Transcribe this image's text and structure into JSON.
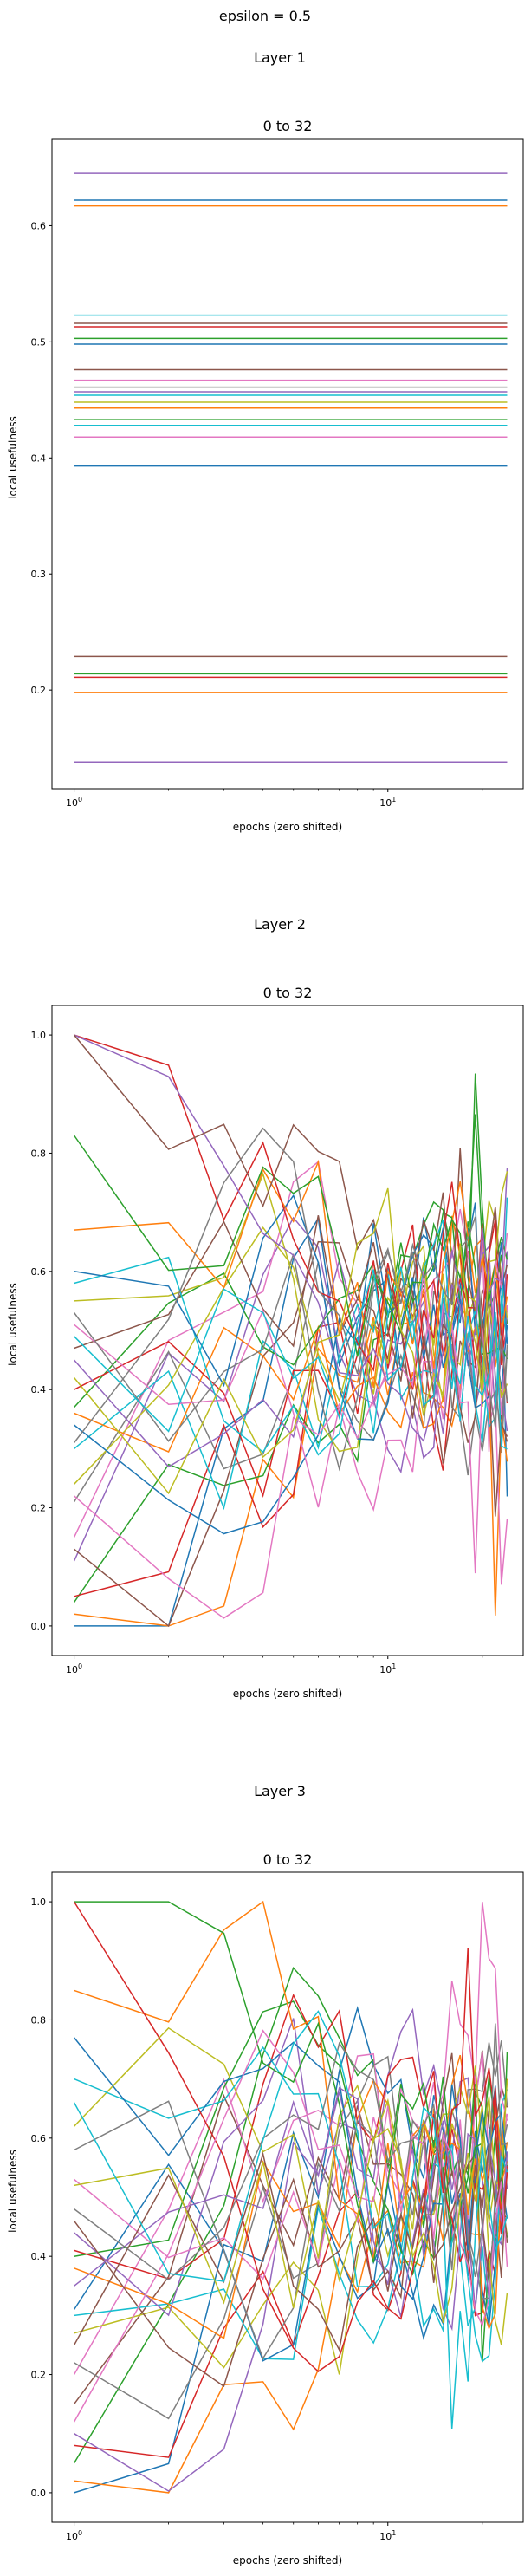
{
  "suptitle": "epsilon = 0.5",
  "chart_data": [
    {
      "type": "line",
      "section_title": "Layer 1",
      "title": "0 to 32",
      "xlabel": "epochs (zero shifted)",
      "ylabel": "local usefulness",
      "xscale": "log",
      "xlim": [
        0.85,
        27
      ],
      "ylim": [
        0.115,
        0.675
      ],
      "xticks": [
        {
          "v": 1,
          "base": "10",
          "exp": "0"
        },
        {
          "v": 10,
          "base": "10",
          "exp": "1"
        }
      ],
      "yticks": [
        {
          "v": 0.2,
          "label": "0.2"
        },
        {
          "v": 0.3,
          "label": "0.3"
        },
        {
          "v": 0.4,
          "label": "0.4"
        },
        {
          "v": 0.5,
          "label": "0.5"
        },
        {
          "v": 0.6,
          "label": "0.6"
        }
      ],
      "x_range": [
        1,
        24
      ],
      "constant_levels": [
        {
          "y": 0.645,
          "color": "#9467bd"
        },
        {
          "y": 0.622,
          "color": "#1f77b4"
        },
        {
          "y": 0.617,
          "color": "#ff7f0e"
        },
        {
          "y": 0.523,
          "color": "#17becf"
        },
        {
          "y": 0.516,
          "color": "#8c564b"
        },
        {
          "y": 0.513,
          "color": "#d62728"
        },
        {
          "y": 0.503,
          "color": "#2ca02c"
        },
        {
          "y": 0.498,
          "color": "#1f77b4"
        },
        {
          "y": 0.476,
          "color": "#8c564b"
        },
        {
          "y": 0.467,
          "color": "#e377c2"
        },
        {
          "y": 0.461,
          "color": "#7f7f7f"
        },
        {
          "y": 0.457,
          "color": "#9467bd"
        },
        {
          "y": 0.454,
          "color": "#17becf"
        },
        {
          "y": 0.448,
          "color": "#bcbd22"
        },
        {
          "y": 0.443,
          "color": "#ff7f0e"
        },
        {
          "y": 0.433,
          "color": "#2ca02c"
        },
        {
          "y": 0.428,
          "color": "#17becf"
        },
        {
          "y": 0.418,
          "color": "#e377c2"
        },
        {
          "y": 0.393,
          "color": "#1f77b4"
        },
        {
          "y": 0.229,
          "color": "#8c564b"
        },
        {
          "y": 0.214,
          "color": "#2ca02c"
        },
        {
          "y": 0.211,
          "color": "#d62728"
        },
        {
          "y": 0.198,
          "color": "#ff7f0e"
        },
        {
          "y": 0.138,
          "color": "#9467bd"
        }
      ]
    },
    {
      "type": "line",
      "section_title": "Layer 2",
      "title": "0 to 32",
      "xlabel": "epochs (zero shifted)",
      "ylabel": "local usefulness",
      "xscale": "log",
      "xlim": [
        0.85,
        27
      ],
      "ylim": [
        -0.05,
        1.05
      ],
      "xticks": [
        {
          "v": 1,
          "base": "10",
          "exp": "0"
        },
        {
          "v": 10,
          "base": "10",
          "exp": "1"
        }
      ],
      "yticks": [
        {
          "v": 0.0,
          "label": "0.0"
        },
        {
          "v": 0.2,
          "label": "0.2"
        },
        {
          "v": 0.4,
          "label": "0.4"
        },
        {
          "v": 0.6,
          "label": "0.6"
        },
        {
          "v": 0.8,
          "label": "0.8"
        },
        {
          "v": 1.0,
          "label": "1.0"
        }
      ],
      "series_count": 30,
      "series_seed": 9017,
      "palette": [
        "#1f77b4",
        "#ff7f0e",
        "#2ca02c",
        "#d62728",
        "#9467bd",
        "#8c564b",
        "#e377c2",
        "#7f7f7f",
        "#bcbd22",
        "#17becf"
      ],
      "x_range": [
        1,
        24
      ],
      "start_values": [
        0.0,
        0.02,
        0.04,
        0.05,
        0.11,
        0.13,
        0.15,
        0.21,
        0.24,
        0.3,
        0.34,
        0.36,
        0.37,
        0.4,
        0.45,
        0.47,
        0.51,
        0.53,
        0.55,
        0.58,
        0.6,
        0.67,
        0.83,
        1.0,
        1.0,
        1.0,
        0.22,
        0.31,
        0.42,
        0.49
      ],
      "note_values": "approximate; individual series values are not labeled in the figure"
    },
    {
      "type": "line",
      "section_title": "Layer 3",
      "title": "0 to 32",
      "xlabel": "epochs (zero shifted)",
      "ylabel": "local usefulness",
      "xscale": "log",
      "xlim": [
        0.85,
        27
      ],
      "ylim": [
        -0.05,
        1.05
      ],
      "xticks": [
        {
          "v": 1,
          "base": "10",
          "exp": "0"
        },
        {
          "v": 10,
          "base": "10",
          "exp": "1"
        }
      ],
      "yticks": [
        {
          "v": 0.0,
          "label": "0.0"
        },
        {
          "v": 0.2,
          "label": "0.2"
        },
        {
          "v": 0.4,
          "label": "0.4"
        },
        {
          "v": 0.6,
          "label": "0.6"
        },
        {
          "v": 0.8,
          "label": "0.8"
        },
        {
          "v": 1.0,
          "label": "1.0"
        }
      ],
      "series_count": 30,
      "series_seed": 4421,
      "palette": [
        "#1f77b4",
        "#ff7f0e",
        "#2ca02c",
        "#d62728",
        "#9467bd",
        "#8c564b",
        "#e377c2",
        "#7f7f7f",
        "#bcbd22",
        "#17becf"
      ],
      "x_range": [
        1,
        24
      ],
      "start_values": [
        0.0,
        0.02,
        0.05,
        0.08,
        0.1,
        0.15,
        0.2,
        0.22,
        0.27,
        0.3,
        0.31,
        0.38,
        0.4,
        0.41,
        0.44,
        0.46,
        0.53,
        0.58,
        0.62,
        0.7,
        0.77,
        0.85,
        1.0,
        1.0,
        0.35,
        0.25,
        0.12,
        0.48,
        0.52,
        0.66
      ],
      "note_values": "approximate; individual series values are not labeled in the figure"
    }
  ]
}
